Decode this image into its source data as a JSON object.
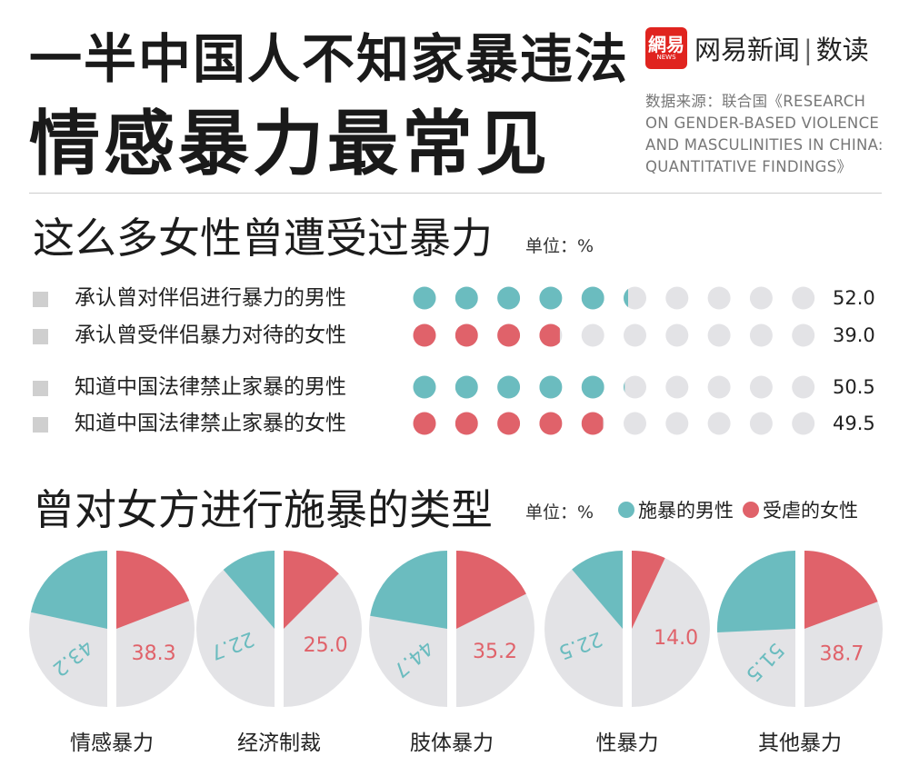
{
  "header": {
    "title_line1": "一半中国人不知家暴违法",
    "title_line2": "情感暴力最常见",
    "brand": {
      "logo_main": "網易",
      "logo_sub": "NEWS",
      "name": "网易新闻",
      "separator": "|",
      "column": "数读"
    },
    "source_lines": [
      "数据来源：联合国《RESEARCH",
      "ON GENDER-BASED VIOLENCE",
      "AND MASCULINITIES IN CHINA:",
      "QUANTITATIVE FINDINGS》"
    ]
  },
  "section1": {
    "title": "这么多女性曾遭受过暴力",
    "unit": "单位：%"
  },
  "section2": {
    "title": "曾对女方进行施暴的类型",
    "unit": "单位：%"
  },
  "colors": {
    "teal": "#6bbcbf",
    "red": "#e0626a",
    "grey": "#e3e3e6",
    "grey_dark": "#d6d6da"
  },
  "chart_data": [
    {
      "type": "dot-matrix",
      "unit": "%",
      "rows": [
        {
          "label": "承认曾对伴侣进行暴力的男性",
          "value": 52.0,
          "value_text": "52.0",
          "color": "teal"
        },
        {
          "label": "承认曾受伴侣暴力对待的女性",
          "value": 39.0,
          "value_text": "39.0",
          "color": "red"
        },
        {
          "label": "知道中国法律禁止家暴的男性",
          "value": 50.5,
          "value_text": "50.5",
          "color": "teal"
        },
        {
          "label": "知道中国法律禁止家暴的女性",
          "value": 49.5,
          "value_text": "49.5",
          "color": "red"
        }
      ]
    },
    {
      "type": "pie",
      "unit": "%",
      "legend": [
        {
          "name": "施暴的男性",
          "color": "teal"
        },
        {
          "name": "受虐的女性",
          "color": "red"
        }
      ],
      "categories": [
        "情感暴力",
        "经济制裁",
        "肢体暴力",
        "性暴力",
        "其他暴力"
      ],
      "series": [
        {
          "name": "施暴的男性",
          "values": [
            43.2,
            22.7,
            44.7,
            22.5,
            51.5
          ],
          "labels": [
            "43.2",
            "22.7",
            "44.7",
            "22.5",
            "51.5"
          ]
        },
        {
          "name": "受虐的女性",
          "values": [
            38.3,
            25.0,
            35.2,
            14.0,
            38.7
          ],
          "labels": [
            "38.3",
            "25.0",
            "35.2",
            "14.0",
            "38.7"
          ]
        }
      ]
    }
  ]
}
